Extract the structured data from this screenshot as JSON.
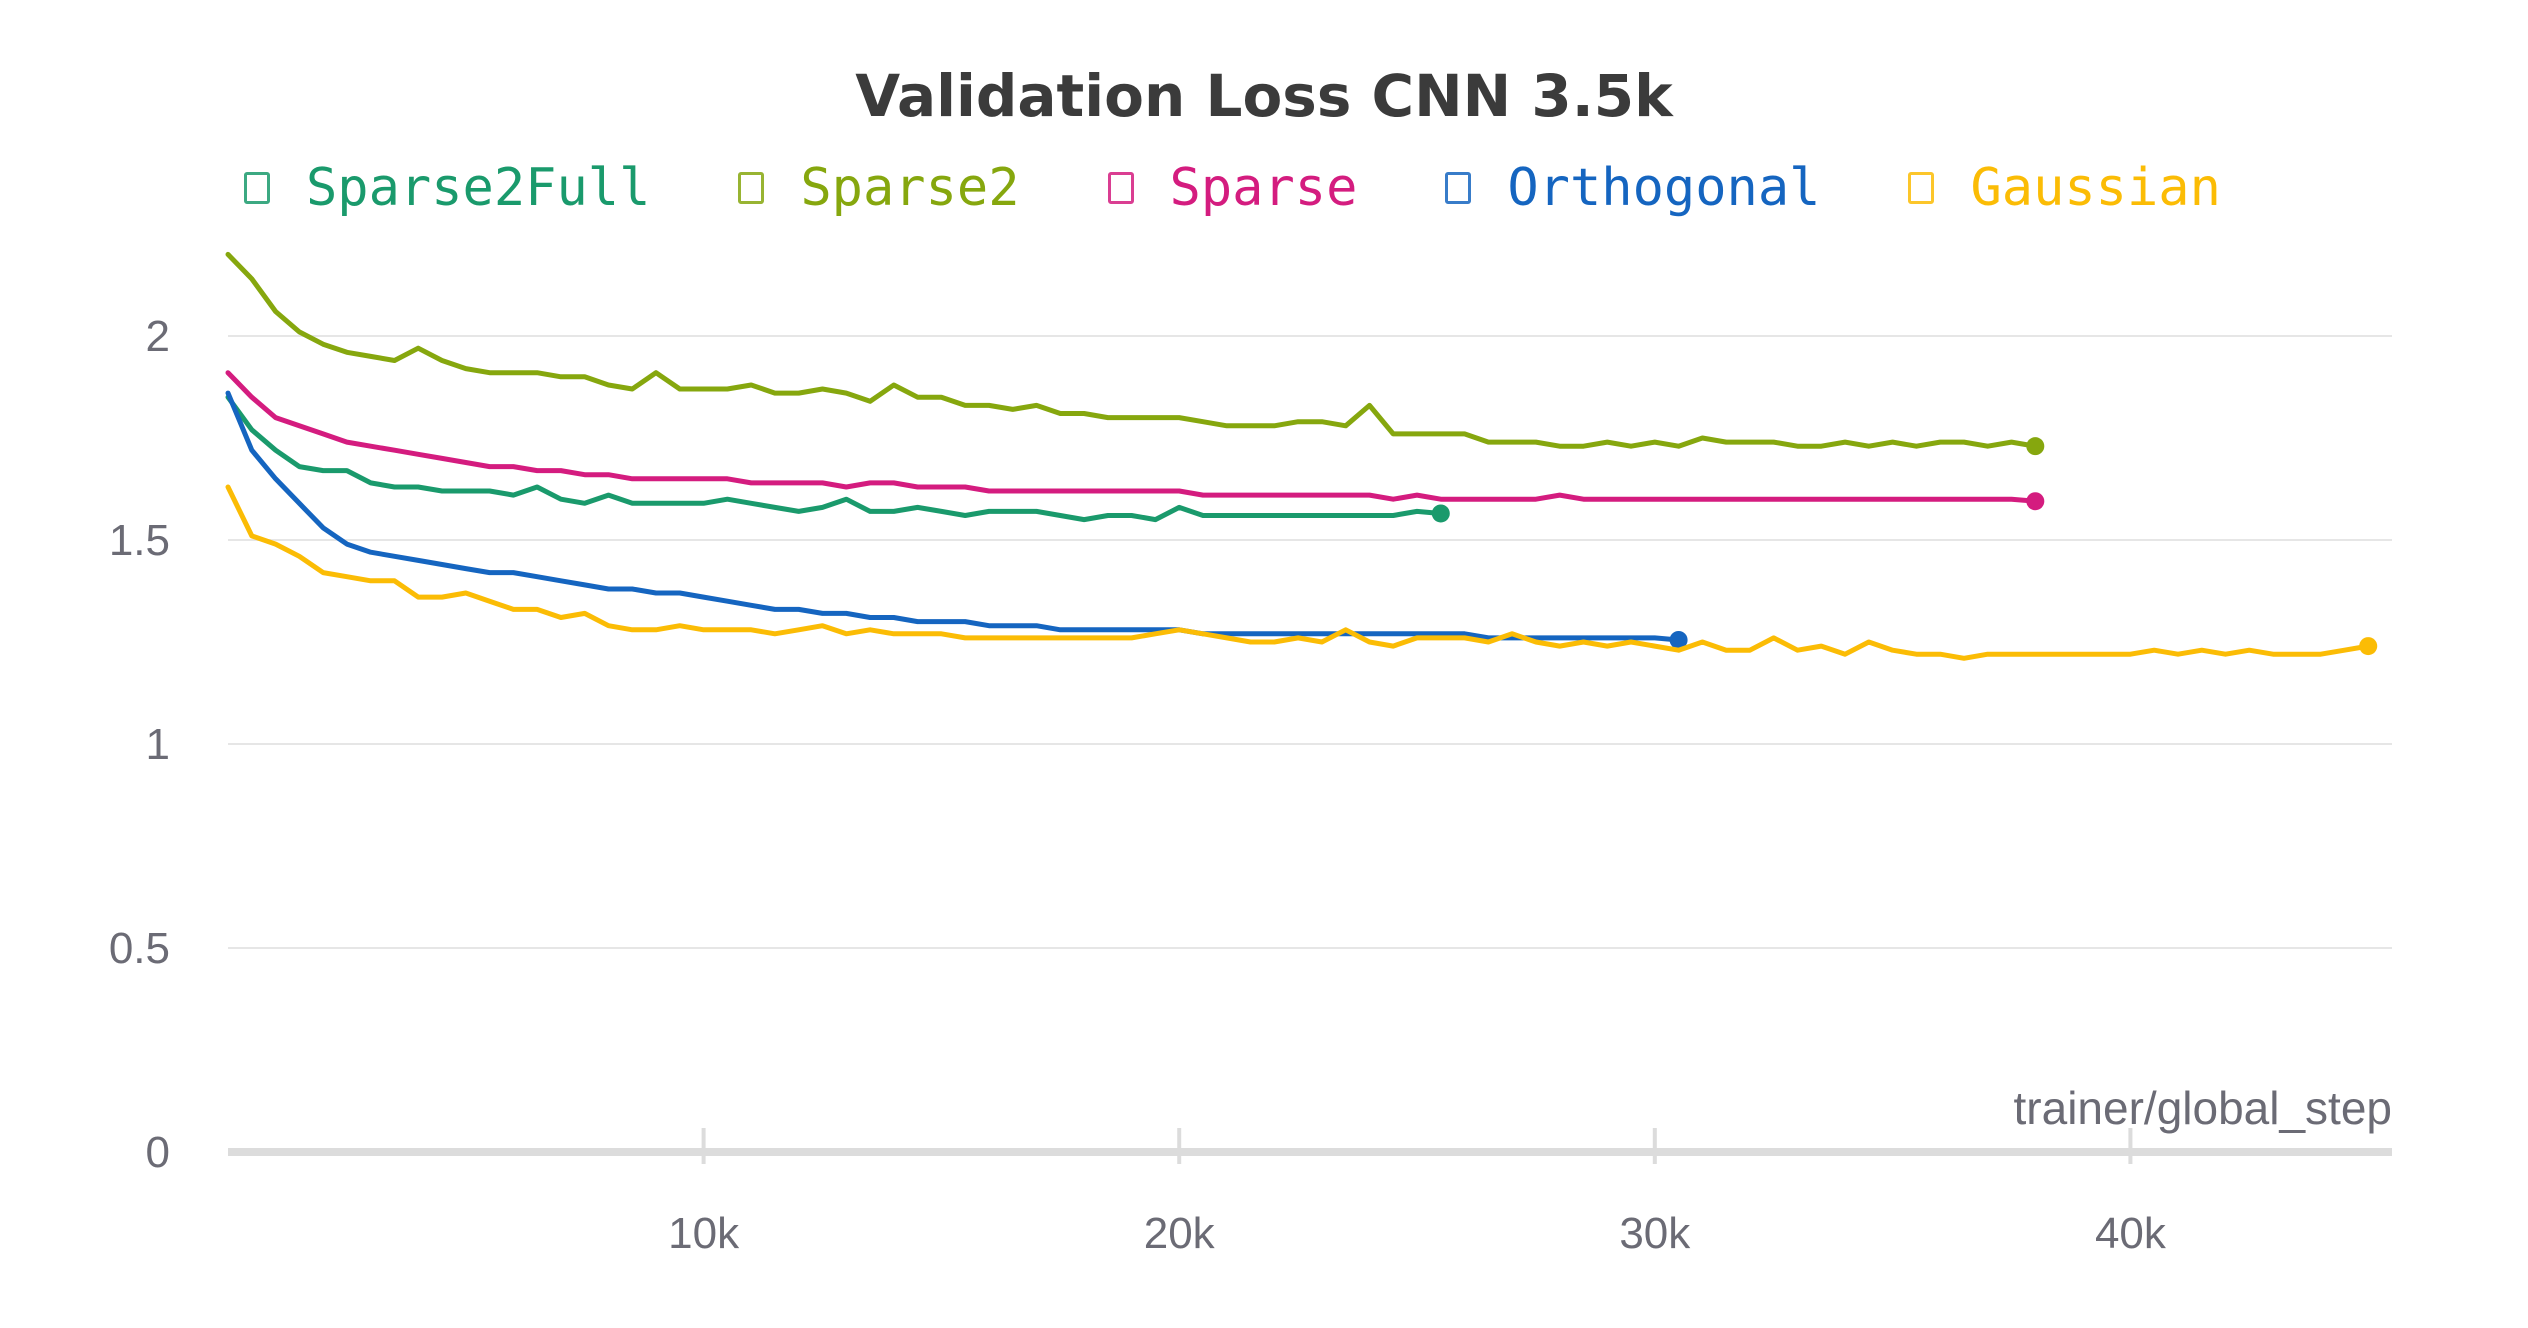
{
  "chart_data": {
    "type": "line",
    "title": "Validation Loss CNN 3.5k",
    "xlabel": "trainer/global_step",
    "ylabel": "",
    "xlim": [
      0,
      45500
    ],
    "ylim": [
      0,
      2.2
    ],
    "x_ticks": [
      10000,
      20000,
      30000,
      40000
    ],
    "x_tick_labels": [
      "10k",
      "20k",
      "30k",
      "40k"
    ],
    "y_ticks": [
      0,
      0.5,
      1,
      1.5,
      2
    ],
    "y_tick_labels": [
      "0",
      "0.5",
      "1",
      "1.5",
      "2"
    ],
    "grid": "horizontal",
    "legend": "top",
    "series": [
      {
        "name": "Sparse2Full",
        "color": "#1a9a6c",
        "x": [
          0,
          500,
          1000,
          1500,
          2000,
          2500,
          3000,
          3500,
          4000,
          4500,
          5000,
          5500,
          6000,
          6500,
          7000,
          7500,
          8000,
          8500,
          9000,
          9500,
          10000,
          10500,
          11000,
          11500,
          12000,
          12500,
          13000,
          13500,
          14000,
          14500,
          15000,
          15500,
          16000,
          16500,
          17000,
          17500,
          18000,
          18500,
          19000,
          19500,
          20000,
          20500,
          21000,
          21500,
          22000,
          22500,
          23000,
          23500,
          24000,
          24500,
          25000,
          25500
        ],
        "values": [
          1.85,
          1.77,
          1.72,
          1.68,
          1.67,
          1.67,
          1.64,
          1.63,
          1.63,
          1.62,
          1.62,
          1.62,
          1.61,
          1.63,
          1.6,
          1.59,
          1.61,
          1.59,
          1.59,
          1.59,
          1.59,
          1.6,
          1.59,
          1.58,
          1.57,
          1.58,
          1.6,
          1.57,
          1.57,
          1.58,
          1.57,
          1.56,
          1.57,
          1.57,
          1.57,
          1.56,
          1.55,
          1.56,
          1.56,
          1.55,
          1.58,
          1.56,
          1.56,
          1.56,
          1.56,
          1.56,
          1.56,
          1.56,
          1.56,
          1.56,
          1.57,
          1.565
        ],
        "end_marker": true
      },
      {
        "name": "Sparse2",
        "color": "#86a70e",
        "x": [
          0,
          500,
          1000,
          1500,
          2000,
          2500,
          3000,
          3500,
          4000,
          4500,
          5000,
          5500,
          6000,
          6500,
          7000,
          7500,
          8000,
          8500,
          9000,
          9500,
          10000,
          10500,
          11000,
          11500,
          12000,
          12500,
          13000,
          13500,
          14000,
          14500,
          15000,
          15500,
          16000,
          16500,
          17000,
          17500,
          18000,
          18500,
          19000,
          19500,
          20000,
          20500,
          21000,
          21500,
          22000,
          22500,
          23000,
          23500,
          24000,
          24500,
          25000,
          25500,
          26000,
          26500,
          27000,
          27500,
          28000,
          28500,
          29000,
          29500,
          30000,
          30500,
          31000,
          31500,
          32000,
          32500,
          33000,
          33500,
          34000,
          34500,
          35000,
          35500,
          36000,
          36500,
          37000,
          37500,
          38000
        ],
        "values": [
          2.2,
          2.14,
          2.06,
          2.01,
          1.98,
          1.96,
          1.95,
          1.94,
          1.97,
          1.94,
          1.92,
          1.91,
          1.91,
          1.91,
          1.9,
          1.9,
          1.88,
          1.87,
          1.91,
          1.87,
          1.87,
          1.87,
          1.88,
          1.86,
          1.86,
          1.87,
          1.86,
          1.84,
          1.88,
          1.85,
          1.85,
          1.83,
          1.83,
          1.82,
          1.83,
          1.81,
          1.81,
          1.8,
          1.8,
          1.8,
          1.8,
          1.79,
          1.78,
          1.78,
          1.78,
          1.79,
          1.79,
          1.78,
          1.83,
          1.76,
          1.76,
          1.76,
          1.76,
          1.74,
          1.74,
          1.74,
          1.73,
          1.73,
          1.74,
          1.73,
          1.74,
          1.73,
          1.75,
          1.74,
          1.74,
          1.74,
          1.73,
          1.73,
          1.74,
          1.73,
          1.74,
          1.73,
          1.74,
          1.74,
          1.73,
          1.74,
          1.73
        ],
        "end_marker": true
      },
      {
        "name": "Sparse",
        "color": "#d41c7f",
        "x": [
          0,
          500,
          1000,
          1500,
          2000,
          2500,
          3000,
          3500,
          4000,
          4500,
          5000,
          5500,
          6000,
          6500,
          7000,
          7500,
          8000,
          8500,
          9000,
          9500,
          10000,
          10500,
          11000,
          11500,
          12000,
          12500,
          13000,
          13500,
          14000,
          14500,
          15000,
          15500,
          16000,
          16500,
          17000,
          17500,
          18000,
          18500,
          19000,
          19500,
          20000,
          20500,
          21000,
          21500,
          22000,
          22500,
          23000,
          23500,
          24000,
          24500,
          25000,
          25500,
          26000,
          26500,
          27000,
          27500,
          28000,
          28500,
          29000,
          29500,
          30000,
          30500,
          31000,
          31500,
          32000,
          32500,
          33000,
          33500,
          34000,
          34500,
          35000,
          35500,
          36000,
          36500,
          37000,
          37500,
          38000
        ],
        "values": [
          1.91,
          1.85,
          1.8,
          1.78,
          1.76,
          1.74,
          1.73,
          1.72,
          1.71,
          1.7,
          1.69,
          1.68,
          1.68,
          1.67,
          1.67,
          1.66,
          1.66,
          1.65,
          1.65,
          1.65,
          1.65,
          1.65,
          1.64,
          1.64,
          1.64,
          1.64,
          1.63,
          1.64,
          1.64,
          1.63,
          1.63,
          1.63,
          1.62,
          1.62,
          1.62,
          1.62,
          1.62,
          1.62,
          1.62,
          1.62,
          1.62,
          1.61,
          1.61,
          1.61,
          1.61,
          1.61,
          1.61,
          1.61,
          1.61,
          1.6,
          1.61,
          1.6,
          1.6,
          1.6,
          1.6,
          1.6,
          1.61,
          1.6,
          1.6,
          1.6,
          1.6,
          1.6,
          1.6,
          1.6,
          1.6,
          1.6,
          1.6,
          1.6,
          1.6,
          1.6,
          1.6,
          1.6,
          1.6,
          1.6,
          1.6,
          1.6,
          1.595
        ],
        "end_marker": true
      },
      {
        "name": "Orthogonal",
        "color": "#1565c0",
        "x": [
          0,
          500,
          1000,
          1500,
          2000,
          2500,
          3000,
          3500,
          4000,
          4500,
          5000,
          5500,
          6000,
          6500,
          7000,
          7500,
          8000,
          8500,
          9000,
          9500,
          10000,
          10500,
          11000,
          11500,
          12000,
          12500,
          13000,
          13500,
          14000,
          14500,
          15000,
          15500,
          16000,
          16500,
          17000,
          17500,
          18000,
          18500,
          19000,
          19500,
          20000,
          20500,
          21000,
          21500,
          22000,
          22500,
          23000,
          23500,
          24000,
          24500,
          25000,
          25500,
          26000,
          26500,
          27000,
          27500,
          28000,
          28500,
          29000,
          29500,
          30000,
          30500
        ],
        "values": [
          1.86,
          1.72,
          1.65,
          1.59,
          1.53,
          1.49,
          1.47,
          1.46,
          1.45,
          1.44,
          1.43,
          1.42,
          1.42,
          1.41,
          1.4,
          1.39,
          1.38,
          1.38,
          1.37,
          1.37,
          1.36,
          1.35,
          1.34,
          1.33,
          1.33,
          1.32,
          1.32,
          1.31,
          1.31,
          1.3,
          1.3,
          1.3,
          1.29,
          1.29,
          1.29,
          1.28,
          1.28,
          1.28,
          1.28,
          1.28,
          1.28,
          1.27,
          1.27,
          1.27,
          1.27,
          1.27,
          1.27,
          1.27,
          1.27,
          1.27,
          1.27,
          1.27,
          1.27,
          1.26,
          1.26,
          1.26,
          1.26,
          1.26,
          1.26,
          1.26,
          1.26,
          1.255
        ],
        "end_marker": true
      },
      {
        "name": "Gaussian",
        "color": "#fbbc05",
        "x": [
          0,
          500,
          1000,
          1500,
          2000,
          2500,
          3000,
          3500,
          4000,
          4500,
          5000,
          5500,
          6000,
          6500,
          7000,
          7500,
          8000,
          8500,
          9000,
          9500,
          10000,
          10500,
          11000,
          11500,
          12000,
          12500,
          13000,
          13500,
          14000,
          14500,
          15000,
          15500,
          16000,
          16500,
          17000,
          17500,
          18000,
          18500,
          19000,
          19500,
          20000,
          20500,
          21000,
          21500,
          22000,
          22500,
          23000,
          23500,
          24000,
          24500,
          25000,
          25500,
          26000,
          26500,
          27000,
          27500,
          28000,
          28500,
          29000,
          29500,
          30000,
          30500,
          31000,
          31500,
          32000,
          32500,
          33000,
          33500,
          34000,
          34500,
          35000,
          35500,
          36000,
          36500,
          37000,
          37500,
          38000,
          38500,
          39000,
          39500,
          40000,
          40500,
          41000,
          41500,
          42000,
          42500,
          43000,
          43500,
          44000,
          44500,
          45000
        ],
        "values": [
          1.63,
          1.51,
          1.49,
          1.46,
          1.42,
          1.41,
          1.4,
          1.4,
          1.36,
          1.36,
          1.37,
          1.35,
          1.33,
          1.33,
          1.31,
          1.32,
          1.29,
          1.28,
          1.28,
          1.29,
          1.28,
          1.28,
          1.28,
          1.27,
          1.28,
          1.29,
          1.27,
          1.28,
          1.27,
          1.27,
          1.27,
          1.26,
          1.26,
          1.26,
          1.26,
          1.26,
          1.26,
          1.26,
          1.26,
          1.27,
          1.28,
          1.27,
          1.26,
          1.25,
          1.25,
          1.26,
          1.25,
          1.28,
          1.25,
          1.24,
          1.26,
          1.26,
          1.26,
          1.25,
          1.27,
          1.25,
          1.24,
          1.25,
          1.24,
          1.25,
          1.24,
          1.23,
          1.25,
          1.23,
          1.23,
          1.26,
          1.23,
          1.24,
          1.22,
          1.25,
          1.23,
          1.22,
          1.22,
          1.21,
          1.22,
          1.22,
          1.22,
          1.22,
          1.22,
          1.22,
          1.22,
          1.23,
          1.22,
          1.23,
          1.22,
          1.23,
          1.22,
          1.22,
          1.22,
          1.23,
          1.24
        ],
        "end_marker": true
      }
    ]
  }
}
